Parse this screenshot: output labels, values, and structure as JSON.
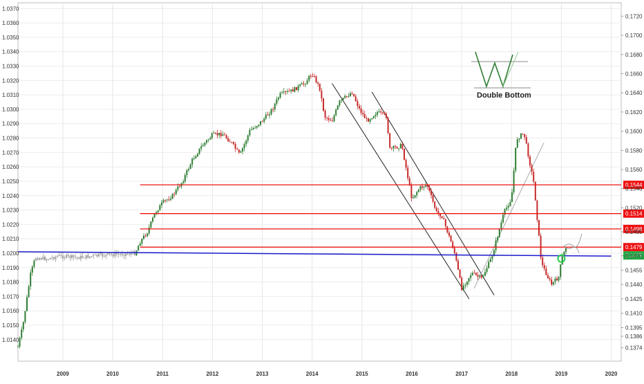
{
  "chart_data": {
    "type": "candlestick",
    "title": "",
    "xlabel": "",
    "ylabel": "",
    "grid": true,
    "x_axis": {
      "labels": [
        "2009",
        "2010",
        "2011",
        "2012",
        "2013",
        "2014",
        "2015",
        "2016",
        "2017",
        "2018",
        "2019",
        "2020"
      ],
      "range": [
        2008.1,
        2020.2
      ]
    },
    "left_axis": {
      "range": [
        1.0125,
        1.0374
      ],
      "ticks": [
        "1.0370",
        "1.0360",
        "1.0350",
        "1.0340",
        "1.0330",
        "1.0320",
        "1.0310",
        "1.0300",
        "1.0290",
        "1.0280",
        "1.0270",
        "1.0260",
        "1.0250",
        "1.0240",
        "1.0230",
        "1.0220",
        "1.0210",
        "1.0200",
        "1.0190",
        "1.0180",
        "1.0170",
        "1.0160",
        "1.0150",
        "1.0140"
      ]
    },
    "right_axis": {
      "range": [
        0.136,
        0.1734
      ],
      "ticks": [
        "0.1720",
        "0.1700",
        "0.1680",
        "0.1660",
        "0.1640",
        "0.1620",
        "0.1600",
        "0.1580",
        "0.1560",
        "0.1540",
        "0.1520",
        "0.1495",
        "0.1470",
        "0.1455",
        "0.1440",
        "0.1425",
        "0.1410",
        "0.1395",
        "0.1386",
        "0.1374"
      ]
    },
    "price_path_right_axis": [
      [
        2016.6,
        0.1512
      ],
      [
        2016.85,
        0.1475
      ],
      [
        2017.0,
        0.1436
      ],
      [
        2017.2,
        0.1452
      ],
      [
        2017.4,
        0.1446
      ],
      [
        2017.6,
        0.1468
      ],
      [
        2017.85,
        0.1515
      ],
      [
        2018.0,
        0.153
      ],
      [
        2018.1,
        0.1592
      ],
      [
        2018.25,
        0.1598
      ],
      [
        2018.45,
        0.1545
      ],
      [
        2018.6,
        0.1462
      ],
      [
        2018.8,
        0.144
      ],
      [
        2018.95,
        0.1448
      ],
      [
        2019.0,
        0.1465
      ],
      [
        2019.1,
        0.148
      ]
    ],
    "horizontal_levels": [
      {
        "value": 0.1544,
        "label": "0.1544",
        "color": "#ee1111"
      },
      {
        "value": 0.1514,
        "label": "0.1514",
        "color": "#ee1111"
      },
      {
        "value": 0.1498,
        "label": "0.1498",
        "color": "#ee1111"
      },
      {
        "value": 0.1479,
        "label": "0.1479",
        "color": "#ee1111"
      }
    ],
    "current_price": {
      "value": 0.1479,
      "label": "0.1479",
      "color": "#22aa44"
    },
    "support_line": {
      "x": [
        2008.1,
        2020.0
      ],
      "y": [
        1.0201,
        1.0198
      ],
      "axis": "left",
      "color": "#1a1acc"
    },
    "annotation": {
      "text": "Double Bottom"
    },
    "colors": {
      "up": "#2e7d32",
      "down": "#c62828",
      "neutral": "#9e9e9e"
    }
  }
}
